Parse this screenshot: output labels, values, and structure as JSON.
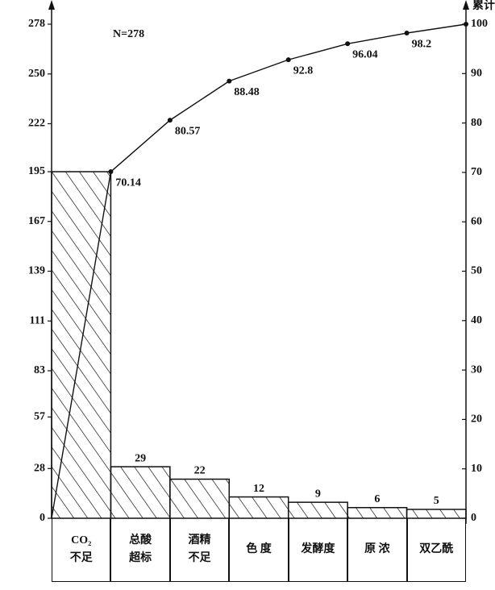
{
  "chart_data": {
    "type": "pareto",
    "annotation": "N=278",
    "y2_label": "累计",
    "categories": [
      "CO₂\n不足",
      "总酸\n超标",
      "酒精\n不足",
      "色 度",
      "发酵度",
      "原 浓",
      "双乙酰"
    ],
    "values": [
      195,
      29,
      22,
      12,
      9,
      6,
      5
    ],
    "value_labels": [
      null,
      "29",
      "22",
      "12",
      "9",
      "6",
      "5"
    ],
    "color": "#111111",
    "ylim": [
      0,
      278
    ],
    "yticks": [
      0,
      28,
      57,
      83,
      111,
      139,
      167,
      195,
      222,
      250,
      278
    ],
    "y2lim": [
      0,
      100
    ],
    "y2ticks": [
      0,
      10,
      20,
      30,
      40,
      50,
      60,
      70,
      80,
      90,
      100
    ],
    "cumulative": {
      "axis": "y2",
      "values": [
        70.14,
        80.57,
        88.48,
        92.8,
        96.04,
        98.2,
        100
      ],
      "value_labels": [
        "70.14",
        "80.57",
        "88.48",
        "92.8",
        "96.04",
        "98.2",
        null
      ]
    }
  }
}
